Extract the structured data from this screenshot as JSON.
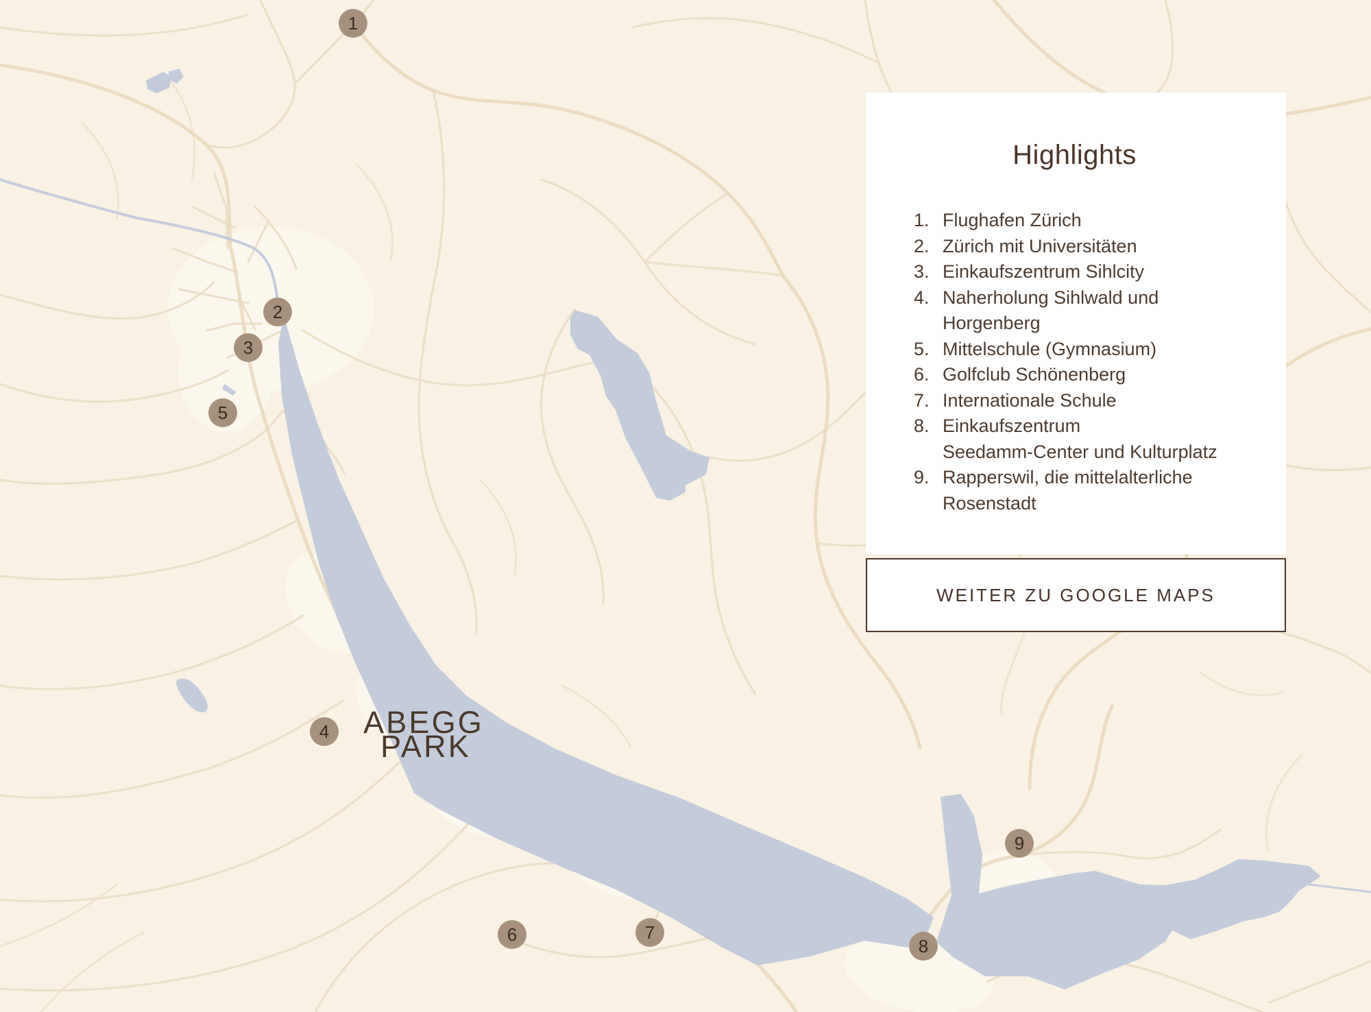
{
  "colors": {
    "map-bg": "#f8f1e4",
    "road": "#ecdfc8",
    "road-strong": "#e9d9bd",
    "water": "#c4ccdb",
    "urban": "#fdf9f0",
    "ink": "#483528",
    "marker-bg": "#a8917c",
    "marker-ink": "#3a2b20",
    "panel-bg": "#ffffff"
  },
  "map": {
    "brand": {
      "line1": "ABEGG",
      "line2": "PARK"
    },
    "markers": [
      {
        "label": "1",
        "x": 25.75,
        "y": 2.3
      },
      {
        "label": "2",
        "x": 20.25,
        "y": 30.83
      },
      {
        "label": "3",
        "x": 18.1,
        "y": 34.35
      },
      {
        "label": "4",
        "x": 23.65,
        "y": 72.29
      },
      {
        "label": "5",
        "x": 16.25,
        "y": 40.79
      },
      {
        "label": "6",
        "x": 37.35,
        "y": 92.34
      },
      {
        "label": "7",
        "x": 47.4,
        "y": 92.14
      },
      {
        "label": "8",
        "x": 67.35,
        "y": 93.5
      },
      {
        "label": "9",
        "x": 74.35,
        "y": 83.33
      }
    ]
  },
  "panel": {
    "title": "Highlights",
    "items": [
      {
        "num": "1.",
        "text": "Flughafen Zürich"
      },
      {
        "num": "2.",
        "text": "Zürich mit Universitäten"
      },
      {
        "num": "3.",
        "text": "Einkaufszentrum Sihlcity"
      },
      {
        "num": "4.",
        "text": "Naherholung Sihlwald und\nHorgenberg"
      },
      {
        "num": "5.",
        "text": "Mittelschule (Gymnasium)"
      },
      {
        "num": "6.",
        "text": "Golfclub Schönenberg"
      },
      {
        "num": "7.",
        "text": "Internationale Schule"
      },
      {
        "num": "8.",
        "text": "Einkaufszentrum\nSeedamm-Center und Kulturplatz"
      },
      {
        "num": "9.",
        "text": "Rapperswil, die mittelalterliche\nRosenstadt"
      }
    ]
  },
  "cta": {
    "label": "WEITER ZU GOOGLE MAPS"
  }
}
